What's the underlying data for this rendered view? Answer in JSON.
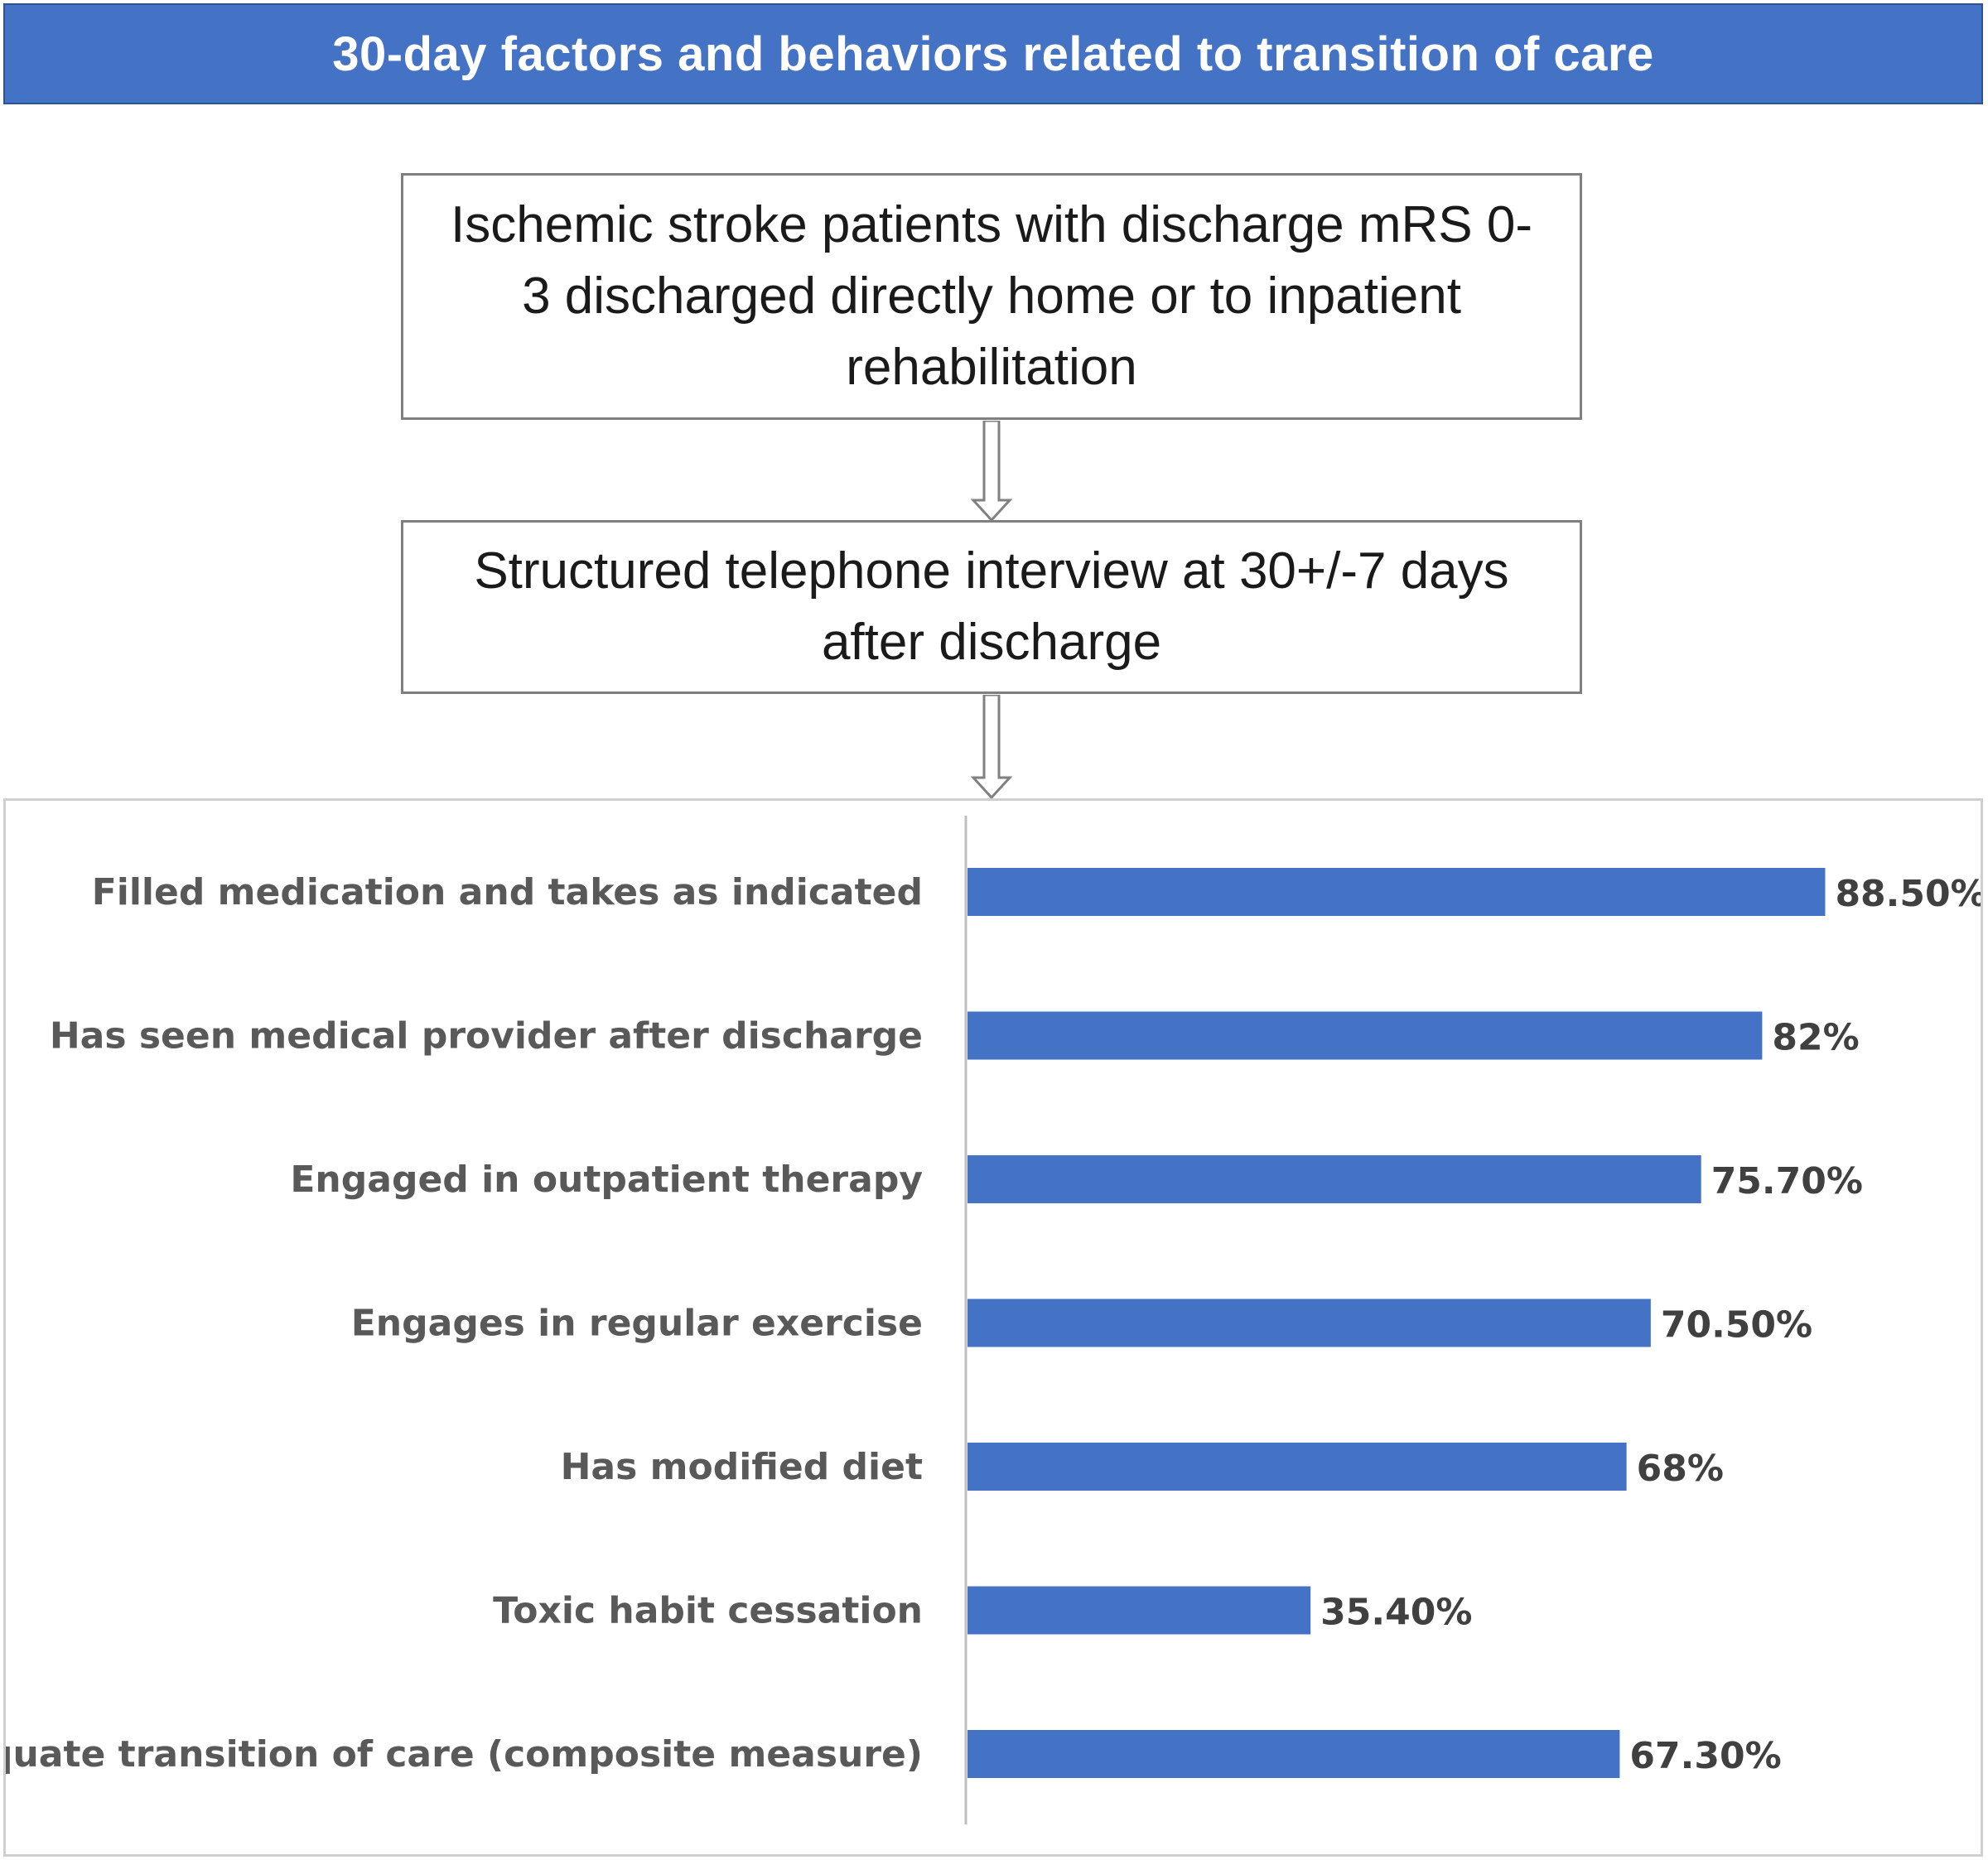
{
  "header": {
    "title": "30-day factors and behaviors related to transition of care",
    "color": "#4472c4"
  },
  "flow": {
    "step1": "Ischemic stroke patients with discharge mRS 0-3 discharged directly home or to inpatient rehabilitation",
    "step2": "Structured telephone interview at 30+/-7 days after discharge"
  },
  "chart_data": {
    "type": "bar",
    "orientation": "horizontal",
    "categories": [
      "Filled medication and takes as indicated",
      "Has seen medical provider after discharge",
      "Engaged in outpatient therapy",
      "Engages in regular exercise",
      "Has modified diet",
      "Toxic habit cessation",
      "Adequate transition of care (composite measure)"
    ],
    "values": [
      88.5,
      82,
      75.7,
      70.5,
      68,
      35.4,
      67.3
    ],
    "value_labels": [
      "88.50%",
      "82%",
      "75.70%",
      "70.50%",
      "68%",
      "35.40%",
      "67.30%"
    ],
    "xlim": [
      0,
      100
    ],
    "grid": false,
    "bar_color": "#4472c4"
  }
}
